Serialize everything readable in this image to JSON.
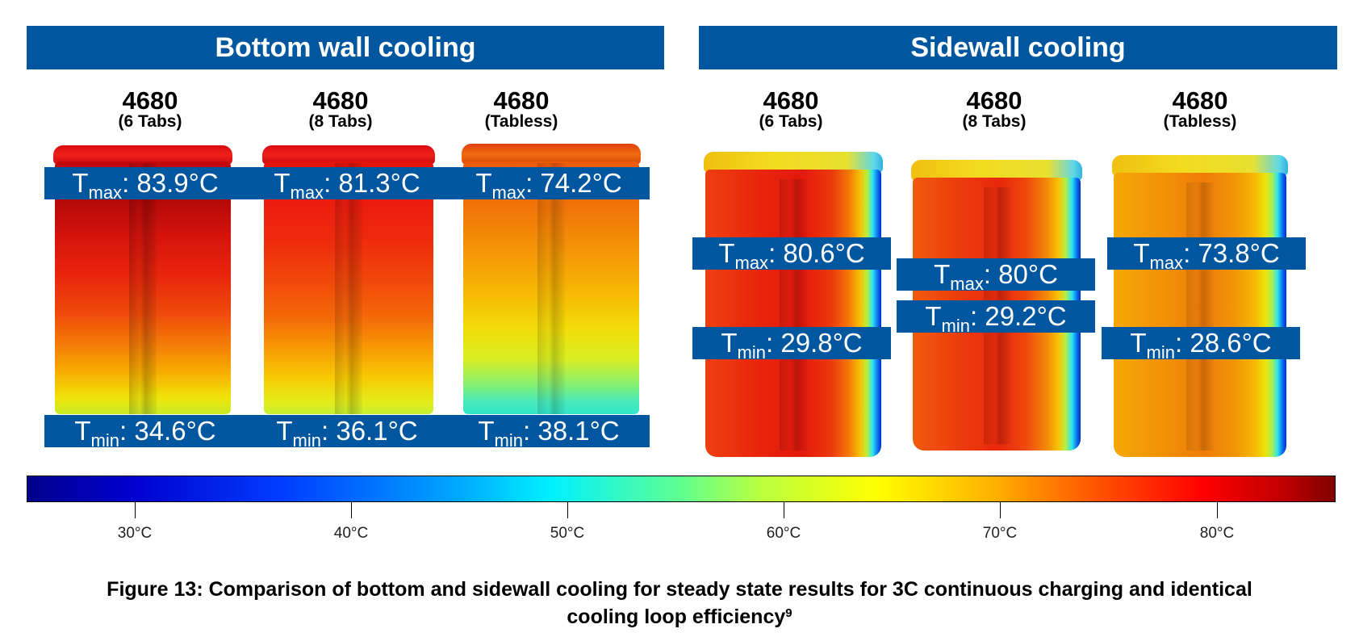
{
  "headers": {
    "bottom": "Bottom wall cooling",
    "side": "Sidewall cooling"
  },
  "cells": [
    {
      "name": "4680",
      "variant": "(6 Tabs)",
      "tmax": "83.9°C",
      "tmin": "34.6°C"
    },
    {
      "name": "4680",
      "variant": "(8 Tabs)",
      "tmax": "81.3°C",
      "tmin": "36.1°C"
    },
    {
      "name": "4680",
      "variant": "(Tabless)",
      "tmax": "74.2°C",
      "tmin": "38.1°C"
    },
    {
      "name": "4680",
      "variant": "(6 Tabs)",
      "tmax": "80.6°C",
      "tmin": "29.8°C"
    },
    {
      "name": "4680",
      "variant": "(8 Tabs)",
      "tmax": "80°C",
      "tmin": "29.2°C"
    },
    {
      "name": "4680",
      "variant": "(Tabless)",
      "tmax": "73.8°C",
      "tmin": "28.6°C"
    }
  ],
  "label_prefix": {
    "t": "T",
    "max": "max",
    "min": "min",
    "sep": ": "
  },
  "colorbar": {
    "min_c": 25,
    "max_c": 85.5,
    "ticks": [
      "30°C",
      "40°C",
      "50°C",
      "60°C",
      "70°C",
      "80°C"
    ],
    "tick_values": [
      30,
      40,
      50,
      60,
      70,
      80
    ]
  },
  "caption": {
    "line1": "Figure 13: Comparison of bottom and sidewall cooling for steady state results for 3C continuous charging and identical",
    "line2": "cooling loop efficiency",
    "sup": "9"
  }
}
